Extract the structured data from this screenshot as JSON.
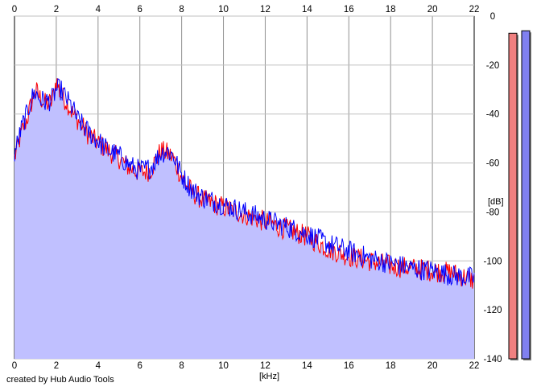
{
  "chart_data": {
    "type": "area",
    "title": "",
    "xlabel": "[kHz]",
    "ylabel": "[dB]",
    "xlim": [
      0,
      22
    ],
    "ylim": [
      -140,
      0
    ],
    "x_ticks": [
      0,
      2,
      4,
      6,
      8,
      10,
      12,
      14,
      16,
      18,
      20,
      22
    ],
    "y_ticks": [
      0,
      -20,
      -40,
      -60,
      -80,
      -100,
      -120,
      -140
    ],
    "grid": true,
    "series": [
      {
        "color": "#ff0000",
        "fill": "#c0c0ff",
        "x": [
          0,
          0.2,
          0.4,
          0.6,
          0.8,
          1.0,
          1.2,
          1.5,
          1.8,
          2.0,
          2.2,
          2.5,
          2.8,
          3.0,
          3.5,
          4.0,
          4.5,
          5.0,
          5.5,
          6.0,
          6.5,
          7.0,
          7.3,
          7.6,
          8.0,
          8.5,
          9.0,
          10.0,
          11.0,
          12.0,
          13.0,
          14.0,
          15.0,
          16.0,
          17.0,
          18.0,
          19.0,
          20.0,
          21.0,
          22.0
        ],
        "values": [
          -58,
          -52,
          -46,
          -42,
          -36,
          -30,
          -33,
          -36,
          -35,
          -26,
          -32,
          -35,
          -40,
          -42,
          -48,
          -52,
          -55,
          -58,
          -62,
          -64,
          -63,
          -55,
          -56,
          -58,
          -66,
          -72,
          -75,
          -78,
          -81,
          -84,
          -87,
          -90,
          -95,
          -98,
          -100,
          -102,
          -103,
          -104,
          -105,
          -108
        ]
      },
      {
        "color": "#0000ff",
        "x": [
          0,
          0.2,
          0.4,
          0.6,
          0.8,
          1.0,
          1.2,
          1.5,
          1.8,
          2.0,
          2.2,
          2.5,
          2.8,
          3.0,
          3.5,
          4.0,
          4.5,
          5.0,
          5.5,
          6.0,
          6.5,
          7.0,
          7.3,
          7.6,
          8.0,
          8.5,
          9.0,
          10.0,
          11.0,
          12.0,
          13.0,
          14.0,
          15.0,
          16.0,
          17.0,
          18.0,
          19.0,
          20.0,
          21.0,
          22.0
        ],
        "values": [
          -56,
          -50,
          -44,
          -40,
          -34,
          -31,
          -34,
          -35,
          -34,
          -30,
          -30,
          -34,
          -38,
          -42,
          -47,
          -51,
          -55,
          -57,
          -61,
          -63,
          -62,
          -56,
          -55,
          -57,
          -65,
          -71,
          -74,
          -77,
          -80,
          -83,
          -86,
          -89,
          -93,
          -96,
          -99,
          -101,
          -103,
          -104,
          -106,
          -107
        ]
      }
    ]
  },
  "meters": [
    {
      "color": "#f08080",
      "level_db": -7
    },
    {
      "color": "#8080f0",
      "level_db": -6
    }
  ],
  "footer": {
    "credit": "created by Hub Audio Tools"
  }
}
